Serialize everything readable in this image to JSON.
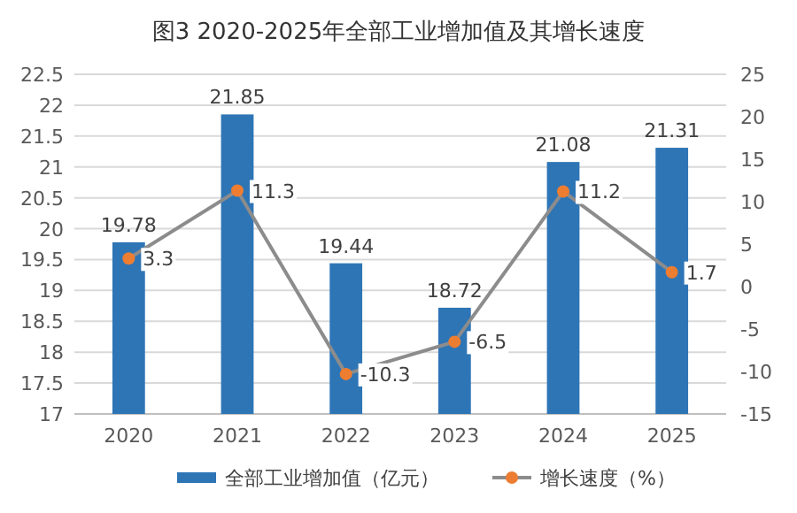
{
  "chart_data": {
    "type": "bar",
    "title": "图3 2020-2025年全部工业增加值及其增长速度",
    "categories": [
      "2020",
      "2021",
      "2022",
      "2023",
      "2024",
      "2025"
    ],
    "series": [
      {
        "name": "全部工业增加值（亿元）",
        "color": "#2e75b6",
        "values": [
          19.78,
          21.85,
          19.44,
          18.72,
          21.08,
          21.31
        ]
      },
      {
        "name": "增长速度（%）",
        "type": "line",
        "axis": "y2",
        "color": "#8c8c8c",
        "colors": [
          "#ed7d31",
          "#ed7d31",
          "#ed7d31",
          "#ed7d31",
          "#ed7d31",
          "#ed7d31"
        ],
        "marker": "circle",
        "values": [
          3.3,
          11.3,
          -10.3,
          -6.5,
          11.2,
          1.7
        ]
      }
    ],
    "ylim": [
      17,
      22.5
    ],
    "yticks": [
      17,
      17.5,
      18,
      18.5,
      19,
      19.5,
      20,
      20.5,
      21,
      21.5,
      22,
      22.5
    ],
    "y2lim": [
      -15,
      25
    ],
    "y2ticks": [
      -15,
      -10,
      -5,
      0,
      5,
      10,
      15,
      20,
      25
    ],
    "grid": "y",
    "legend": "bottom",
    "data_labels": true
  }
}
